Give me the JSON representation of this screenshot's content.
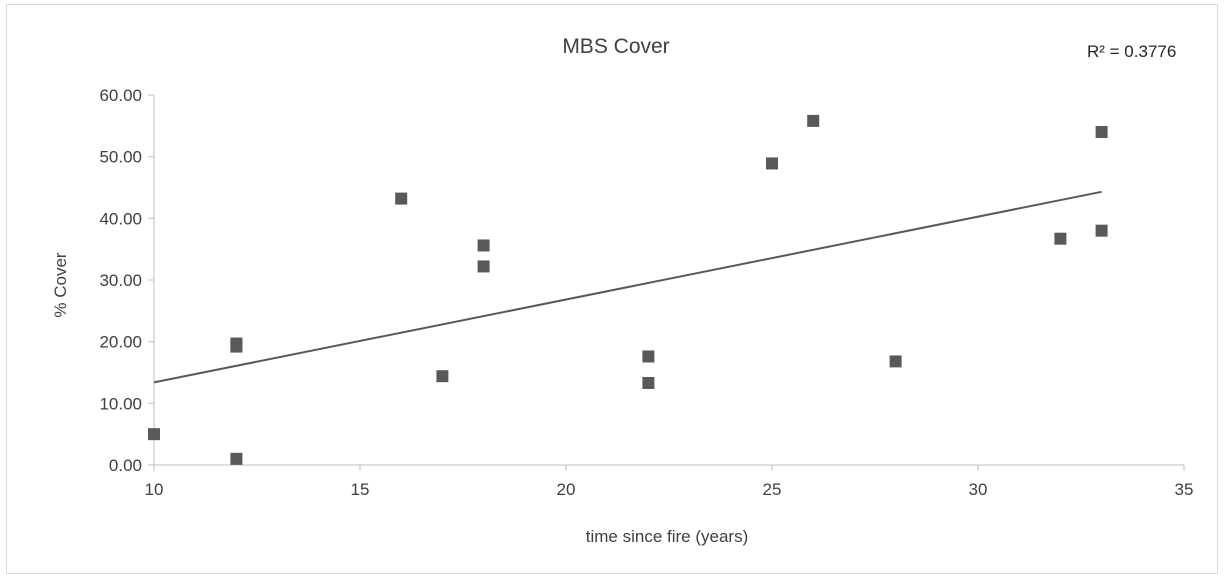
{
  "chart_data": {
    "type": "scatter",
    "title": "MBS Cover",
    "xlabel": "time since fire (years)",
    "ylabel": "% Cover",
    "xlim": [
      10,
      35
    ],
    "ylim": [
      0,
      60
    ],
    "x_ticks": [
      10,
      15,
      20,
      25,
      30,
      35
    ],
    "x_tick_labels": [
      "10",
      "15",
      "20",
      "25",
      "30",
      "35"
    ],
    "y_ticks": [
      0,
      10,
      20,
      30,
      40,
      50,
      60
    ],
    "y_tick_labels": [
      "0.00",
      "10.00",
      "20.00",
      "30.00",
      "40.00",
      "50.00",
      "60.00"
    ],
    "grid": false,
    "legend": "none",
    "marker": "square",
    "marker_color": "#595959",
    "trendline": {
      "type": "linear",
      "x": [
        10,
        33
      ],
      "y": [
        13.4,
        44.3
      ],
      "color": "#595959",
      "r_squared_label": "R² = 0.3776"
    },
    "points": [
      {
        "x": 10,
        "y": 5.0
      },
      {
        "x": 12,
        "y": 1.0
      },
      {
        "x": 12,
        "y": 19.2
      },
      {
        "x": 12,
        "y": 19.7
      },
      {
        "x": 16,
        "y": 43.2
      },
      {
        "x": 17,
        "y": 14.4
      },
      {
        "x": 18,
        "y": 35.6
      },
      {
        "x": 18,
        "y": 32.2
      },
      {
        "x": 22,
        "y": 17.6
      },
      {
        "x": 22,
        "y": 13.3
      },
      {
        "x": 25,
        "y": 48.9
      },
      {
        "x": 26,
        "y": 55.8
      },
      {
        "x": 28,
        "y": 16.8
      },
      {
        "x": 32,
        "y": 36.7
      },
      {
        "x": 33,
        "y": 38.0
      },
      {
        "x": 33,
        "y": 54.0
      }
    ]
  }
}
